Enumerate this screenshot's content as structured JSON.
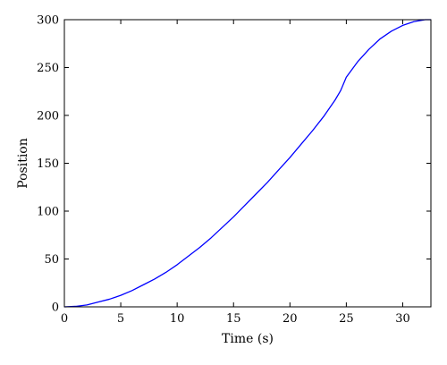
{
  "chart_data": {
    "type": "line",
    "xlabel": "Time (s)",
    "ylabel": "Position",
    "xlim": [
      0,
      32.5
    ],
    "ylim": [
      0,
      300
    ],
    "xticks": [
      0,
      5,
      10,
      15,
      20,
      25,
      30
    ],
    "yticks": [
      0,
      50,
      100,
      150,
      200,
      250,
      300
    ],
    "grid": false,
    "line_color": "#0000ff",
    "series": [
      {
        "x": [
          0,
          1,
          2,
          3,
          4,
          5,
          6,
          7,
          8,
          9,
          10,
          11,
          12,
          13,
          14,
          15,
          16,
          17,
          18,
          19,
          20,
          21,
          22,
          23,
          24,
          24.5,
          25,
          26,
          27,
          28,
          29,
          30,
          31,
          32,
          32.5
        ],
        "values": [
          0,
          0.5,
          2,
          5,
          8,
          12,
          17,
          23,
          29,
          36,
          44,
          53,
          62,
          72,
          83,
          94,
          106,
          118,
          130,
          143,
          156,
          170,
          184,
          199,
          216,
          226,
          240,
          256,
          269,
          280,
          288,
          294,
          298,
          300,
          300
        ]
      }
    ]
  }
}
